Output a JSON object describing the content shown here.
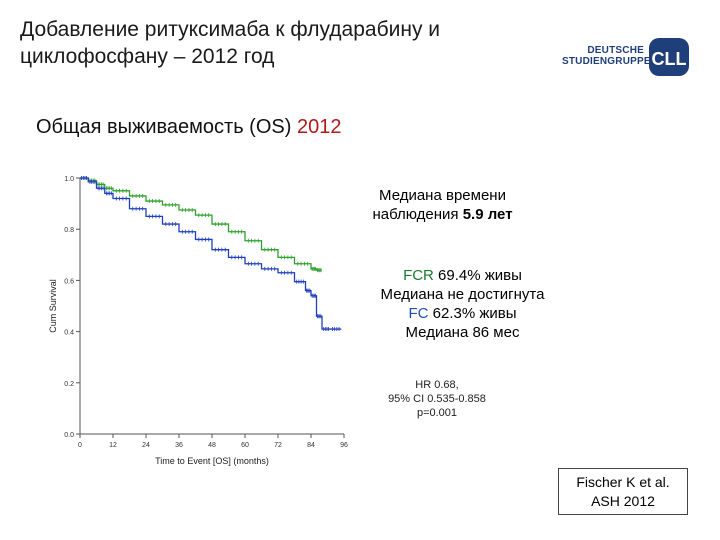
{
  "slide": {
    "title_line1": "Добавление ритуксимаба к флударабину и",
    "title_line2": "циклофосфану – 2012 год",
    "subtitle_text": "Общая выживаемость (OS) ",
    "subtitle_year": "2012"
  },
  "logo": {
    "line1": "DEUTSCHE",
    "line2": "STUDIENGRUPPE",
    "mark": "CLL"
  },
  "followup": {
    "line1": "Медиана времени",
    "line2_text": "наблюдения ",
    "line2_value": "5.9 лет"
  },
  "results": {
    "fcr_label": "FCR",
    "fcr_text": " 69.4% живы",
    "fcr_median": "Медиана не достигнута",
    "fc_label": "FC",
    "fc_text": " 62.3% живы",
    "fc_median": "Медиана 86 мес"
  },
  "stats": {
    "hr": "HR 0.68,",
    "ci": "95% CI 0.535-0.858",
    "p": "p=0.001"
  },
  "citation": {
    "line1": "Fischer K et al.",
    "line2": "ASH 2012"
  },
  "colors": {
    "fcr": "#2ca02c",
    "fc": "#1f3fbf",
    "accent_red": "#b01c1c"
  },
  "chart_data": {
    "type": "line",
    "title": "",
    "xlabel": "Time to Event [OS] (months)",
    "ylabel": "Cum Survival",
    "xlim": [
      0,
      96
    ],
    "ylim": [
      0,
      1
    ],
    "xticks": [
      "0",
      "12",
      "24",
      "36",
      "48",
      "60",
      "72",
      "84",
      "96"
    ],
    "yticks": [
      "0.0",
      "0.2",
      "0.4",
      "0.6",
      "0.8",
      "1.0"
    ],
    "series": [
      {
        "color": "#2ca02c",
        "points": [
          [
            0,
            1.0
          ],
          [
            3,
            0.99
          ],
          [
            6,
            0.975
          ],
          [
            9,
            0.96
          ],
          [
            12,
            0.95
          ],
          [
            18,
            0.93
          ],
          [
            24,
            0.91
          ],
          [
            30,
            0.895
          ],
          [
            36,
            0.875
          ],
          [
            42,
            0.855
          ],
          [
            48,
            0.82
          ],
          [
            54,
            0.79
          ],
          [
            60,
            0.755
          ],
          [
            66,
            0.72
          ],
          [
            72,
            0.69
          ],
          [
            78,
            0.665
          ],
          [
            84,
            0.645
          ],
          [
            86,
            0.64
          ],
          [
            88,
            0.64
          ]
        ]
      },
      {
        "color": "#1f3fbf",
        "points": [
          [
            0,
            1.0
          ],
          [
            3,
            0.985
          ],
          [
            6,
            0.96
          ],
          [
            9,
            0.94
          ],
          [
            12,
            0.92
          ],
          [
            18,
            0.88
          ],
          [
            24,
            0.85
          ],
          [
            30,
            0.82
          ],
          [
            36,
            0.79
          ],
          [
            42,
            0.76
          ],
          [
            48,
            0.72
          ],
          [
            54,
            0.69
          ],
          [
            60,
            0.665
          ],
          [
            66,
            0.645
          ],
          [
            72,
            0.63
          ],
          [
            78,
            0.595
          ],
          [
            82,
            0.56
          ],
          [
            84,
            0.54
          ],
          [
            86,
            0.46
          ],
          [
            88,
            0.41
          ],
          [
            91,
            0.41
          ],
          [
            95,
            0.41
          ]
        ]
      }
    ]
  }
}
